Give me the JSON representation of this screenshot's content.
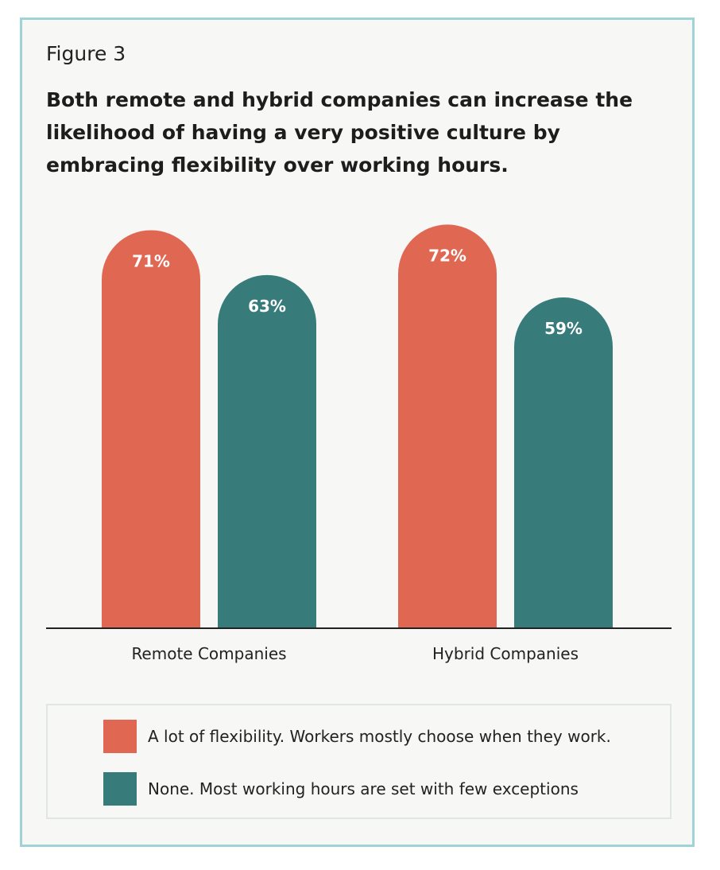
{
  "figure_label": "Figure 3",
  "chart_data": {
    "type": "bar",
    "title": "Both remote and hybrid companies can increase the likelihood of having a very positive culture by embracing flexibility over working hours.",
    "categories": [
      "Remote Companies",
      "Hybrid Companies"
    ],
    "series": [
      {
        "name": "A lot of flexibility. Workers mostly choose when they work.",
        "values": [
          71,
          72
        ],
        "labels": [
          "71%",
          "72%"
        ],
        "color": "#e06852"
      },
      {
        "name": "None. Most working hours are set with few exceptions",
        "values": [
          63,
          59
        ],
        "labels": [
          "63%",
          "59%"
        ],
        "color": "#377c7b"
      }
    ],
    "ylim": [
      0,
      100
    ],
    "grid": false,
    "legend_position": "bottom"
  }
}
